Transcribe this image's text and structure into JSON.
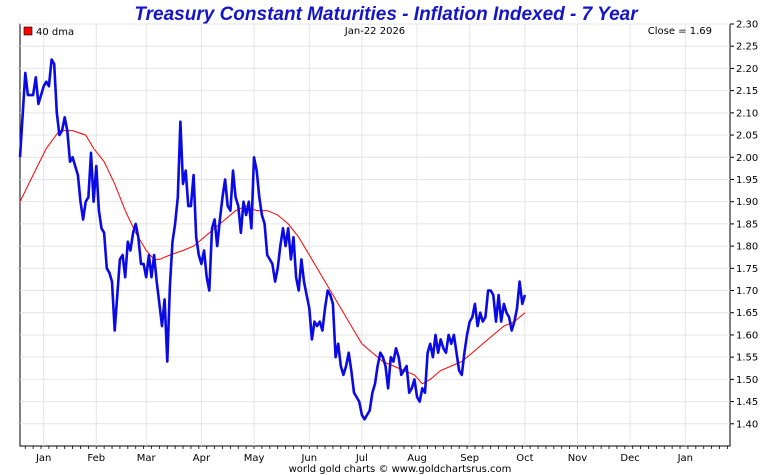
{
  "chart_data": {
    "type": "line",
    "title": "Treasury Constant Maturities - Inflation Indexed - 7 Year",
    "date_label": "Jan-22  2026",
    "close_label": "Close = 1.69",
    "legend": [
      {
        "name": "40 dma",
        "color": "#ff0000"
      }
    ],
    "footer": "world gold charts © www.goldchartsrus.com",
    "ylim": [
      1.35,
      2.3
    ],
    "yticks": [
      "1.40",
      "1.45",
      "1.50",
      "1.55",
      "1.60",
      "1.65",
      "1.70",
      "1.75",
      "1.80",
      "1.85",
      "1.90",
      "1.95",
      "2.00",
      "2.05",
      "2.10",
      "2.15",
      "2.20",
      "2.25",
      "2.30"
    ],
    "xlim": [
      0,
      270
    ],
    "xticks": [
      {
        "label": "Jan",
        "x": 9
      },
      {
        "label": "Feb",
        "x": 29
      },
      {
        "label": "Mar",
        "x": 48
      },
      {
        "label": "Apr",
        "x": 69
      },
      {
        "label": "May",
        "x": 89
      },
      {
        "label": "Jun",
        "x": 110
      },
      {
        "label": "Jul",
        "x": 130
      },
      {
        "label": "Aug",
        "x": 151
      },
      {
        "label": "Sep",
        "x": 171
      },
      {
        "label": "Oct",
        "x": 192
      },
      {
        "label": "Nov",
        "x": 212
      },
      {
        "label": "Dec",
        "x": 232
      },
      {
        "label": "Jan",
        "x": 253
      }
    ],
    "series": [
      {
        "name": "Close",
        "color": "#0a0ae6",
        "points": [
          [
            0,
            2.0
          ],
          [
            2,
            2.19
          ],
          [
            3,
            2.14
          ],
          [
            5,
            2.14
          ],
          [
            6,
            2.18
          ],
          [
            7,
            2.12
          ],
          [
            9,
            2.16
          ],
          [
            10,
            2.17
          ],
          [
            11,
            2.16
          ],
          [
            12,
            2.22
          ],
          [
            13,
            2.21
          ],
          [
            14,
            2.1
          ],
          [
            15,
            2.05
          ],
          [
            16,
            2.06
          ],
          [
            17,
            2.09
          ],
          [
            18,
            2.06
          ],
          [
            19,
            1.99
          ],
          [
            20,
            2.0
          ],
          [
            21,
            1.98
          ],
          [
            22,
            1.96
          ],
          [
            23,
            1.9
          ],
          [
            24,
            1.86
          ],
          [
            25,
            1.9
          ],
          [
            26,
            1.91
          ],
          [
            27,
            2.01
          ],
          [
            28,
            1.9
          ],
          [
            29,
            1.98
          ],
          [
            30,
            1.88
          ],
          [
            31,
            1.84
          ],
          [
            32,
            1.83
          ],
          [
            33,
            1.75
          ],
          [
            34,
            1.74
          ],
          [
            35,
            1.72
          ],
          [
            36,
            1.61
          ],
          [
            37,
            1.69
          ],
          [
            38,
            1.77
          ],
          [
            39,
            1.78
          ],
          [
            40,
            1.73
          ],
          [
            41,
            1.81
          ],
          [
            42,
            1.79
          ],
          [
            43,
            1.83
          ],
          [
            44,
            1.85
          ],
          [
            45,
            1.82
          ],
          [
            46,
            1.76
          ],
          [
            47,
            1.76
          ],
          [
            48,
            1.73
          ],
          [
            49,
            1.78
          ],
          [
            50,
            1.73
          ],
          [
            51,
            1.78
          ],
          [
            52,
            1.72
          ],
          [
            53,
            1.67
          ],
          [
            54,
            1.62
          ],
          [
            55,
            1.68
          ],
          [
            56,
            1.54
          ],
          [
            57,
            1.71
          ],
          [
            58,
            1.81
          ],
          [
            59,
            1.85
          ],
          [
            60,
            1.91
          ],
          [
            61,
            2.08
          ],
          [
            62,
            1.94
          ],
          [
            63,
            1.97
          ],
          [
            64,
            1.89
          ],
          [
            65,
            1.89
          ],
          [
            66,
            1.96
          ],
          [
            67,
            1.82
          ],
          [
            68,
            1.78
          ],
          [
            69,
            1.76
          ],
          [
            70,
            1.79
          ],
          [
            71,
            1.73
          ],
          [
            72,
            1.7
          ],
          [
            73,
            1.84
          ],
          [
            74,
            1.86
          ],
          [
            75,
            1.8
          ],
          [
            76,
            1.86
          ],
          [
            77,
            1.91
          ],
          [
            78,
            1.95
          ],
          [
            79,
            1.89
          ],
          [
            80,
            1.88
          ],
          [
            81,
            1.97
          ],
          [
            82,
            1.91
          ],
          [
            83,
            1.89
          ],
          [
            84,
            1.83
          ],
          [
            85,
            1.9
          ],
          [
            86,
            1.87
          ],
          [
            87,
            1.9
          ],
          [
            88,
            1.84
          ],
          [
            89,
            2.0
          ],
          [
            90,
            1.97
          ],
          [
            91,
            1.91
          ],
          [
            92,
            1.87
          ],
          [
            93,
            1.85
          ],
          [
            94,
            1.78
          ],
          [
            95,
            1.77
          ],
          [
            96,
            1.76
          ],
          [
            97,
            1.72
          ],
          [
            98,
            1.75
          ],
          [
            99,
            1.8
          ],
          [
            100,
            1.84
          ],
          [
            101,
            1.8
          ],
          [
            102,
            1.84
          ],
          [
            103,
            1.77
          ],
          [
            104,
            1.82
          ],
          [
            105,
            1.73
          ],
          [
            106,
            1.7
          ],
          [
            107,
            1.77
          ],
          [
            108,
            1.72
          ],
          [
            109,
            1.69
          ],
          [
            110,
            1.66
          ],
          [
            111,
            1.59
          ],
          [
            112,
            1.63
          ],
          [
            113,
            1.62
          ],
          [
            114,
            1.63
          ],
          [
            115,
            1.61
          ],
          [
            116,
            1.66
          ],
          [
            117,
            1.7
          ],
          [
            118,
            1.69
          ],
          [
            119,
            1.67
          ],
          [
            120,
            1.55
          ],
          [
            121,
            1.58
          ],
          [
            122,
            1.53
          ],
          [
            123,
            1.51
          ],
          [
            124,
            1.53
          ],
          [
            125,
            1.56
          ],
          [
            126,
            1.52
          ],
          [
            127,
            1.47
          ],
          [
            128,
            1.46
          ],
          [
            129,
            1.45
          ],
          [
            130,
            1.42
          ],
          [
            131,
            1.41
          ],
          [
            132,
            1.42
          ],
          [
            133,
            1.43
          ],
          [
            134,
            1.47
          ],
          [
            135,
            1.49
          ],
          [
            136,
            1.53
          ],
          [
            137,
            1.56
          ],
          [
            138,
            1.55
          ],
          [
            139,
            1.53
          ],
          [
            140,
            1.48
          ],
          [
            141,
            1.55
          ],
          [
            142,
            1.54
          ],
          [
            143,
            1.57
          ],
          [
            144,
            1.55
          ],
          [
            145,
            1.51
          ],
          [
            146,
            1.52
          ],
          [
            147,
            1.53
          ],
          [
            148,
            1.47
          ],
          [
            149,
            1.48
          ],
          [
            150,
            1.5
          ],
          [
            151,
            1.46
          ],
          [
            152,
            1.45
          ],
          [
            153,
            1.48
          ],
          [
            154,
            1.47
          ],
          [
            155,
            1.56
          ],
          [
            156,
            1.58
          ],
          [
            157,
            1.55
          ],
          [
            158,
            1.6
          ],
          [
            159,
            1.56
          ],
          [
            160,
            1.59
          ],
          [
            161,
            1.57
          ],
          [
            162,
            1.56
          ],
          [
            163,
            1.6
          ],
          [
            164,
            1.58
          ],
          [
            165,
            1.6
          ],
          [
            166,
            1.56
          ],
          [
            167,
            1.52
          ],
          [
            168,
            1.51
          ],
          [
            169,
            1.56
          ],
          [
            170,
            1.6
          ],
          [
            171,
            1.63
          ],
          [
            172,
            1.64
          ],
          [
            173,
            1.67
          ],
          [
            174,
            1.62
          ],
          [
            175,
            1.65
          ],
          [
            176,
            1.63
          ],
          [
            177,
            1.64
          ],
          [
            178,
            1.7
          ],
          [
            179,
            1.7
          ],
          [
            180,
            1.69
          ],
          [
            181,
            1.63
          ],
          [
            182,
            1.69
          ],
          [
            183,
            1.63
          ],
          [
            184,
            1.67
          ],
          [
            185,
            1.65
          ],
          [
            186,
            1.64
          ],
          [
            187,
            1.61
          ],
          [
            188,
            1.63
          ],
          [
            189,
            1.66
          ],
          [
            190,
            1.72
          ],
          [
            191,
            1.67
          ],
          [
            192,
            1.69
          ]
        ]
      },
      {
        "name": "40 dma",
        "color": "#ff0000",
        "points": [
          [
            0,
            1.9
          ],
          [
            5,
            1.96
          ],
          [
            10,
            2.02
          ],
          [
            15,
            2.06
          ],
          [
            20,
            2.06
          ],
          [
            25,
            2.05
          ],
          [
            28,
            2.02
          ],
          [
            32,
            1.99
          ],
          [
            36,
            1.94
          ],
          [
            40,
            1.88
          ],
          [
            44,
            1.83
          ],
          [
            48,
            1.79
          ],
          [
            51,
            1.77
          ],
          [
            53,
            1.77
          ],
          [
            57,
            1.78
          ],
          [
            62,
            1.79
          ],
          [
            66,
            1.8
          ],
          [
            70,
            1.82
          ],
          [
            74,
            1.84
          ],
          [
            78,
            1.86
          ],
          [
            82,
            1.88
          ],
          [
            86,
            1.89
          ],
          [
            90,
            1.88
          ],
          [
            94,
            1.88
          ],
          [
            98,
            1.87
          ],
          [
            102,
            1.85
          ],
          [
            106,
            1.82
          ],
          [
            110,
            1.78
          ],
          [
            114,
            1.74
          ],
          [
            118,
            1.7
          ],
          [
            122,
            1.66
          ],
          [
            126,
            1.62
          ],
          [
            130,
            1.58
          ],
          [
            134,
            1.56
          ],
          [
            138,
            1.54
          ],
          [
            142,
            1.53
          ],
          [
            146,
            1.52
          ],
          [
            150,
            1.51
          ],
          [
            153,
            1.49
          ],
          [
            156,
            1.5
          ],
          [
            160,
            1.52
          ],
          [
            164,
            1.53
          ],
          [
            168,
            1.54
          ],
          [
            172,
            1.56
          ],
          [
            176,
            1.58
          ],
          [
            180,
            1.6
          ],
          [
            184,
            1.62
          ],
          [
            188,
            1.63
          ],
          [
            192,
            1.65
          ]
        ]
      }
    ]
  }
}
